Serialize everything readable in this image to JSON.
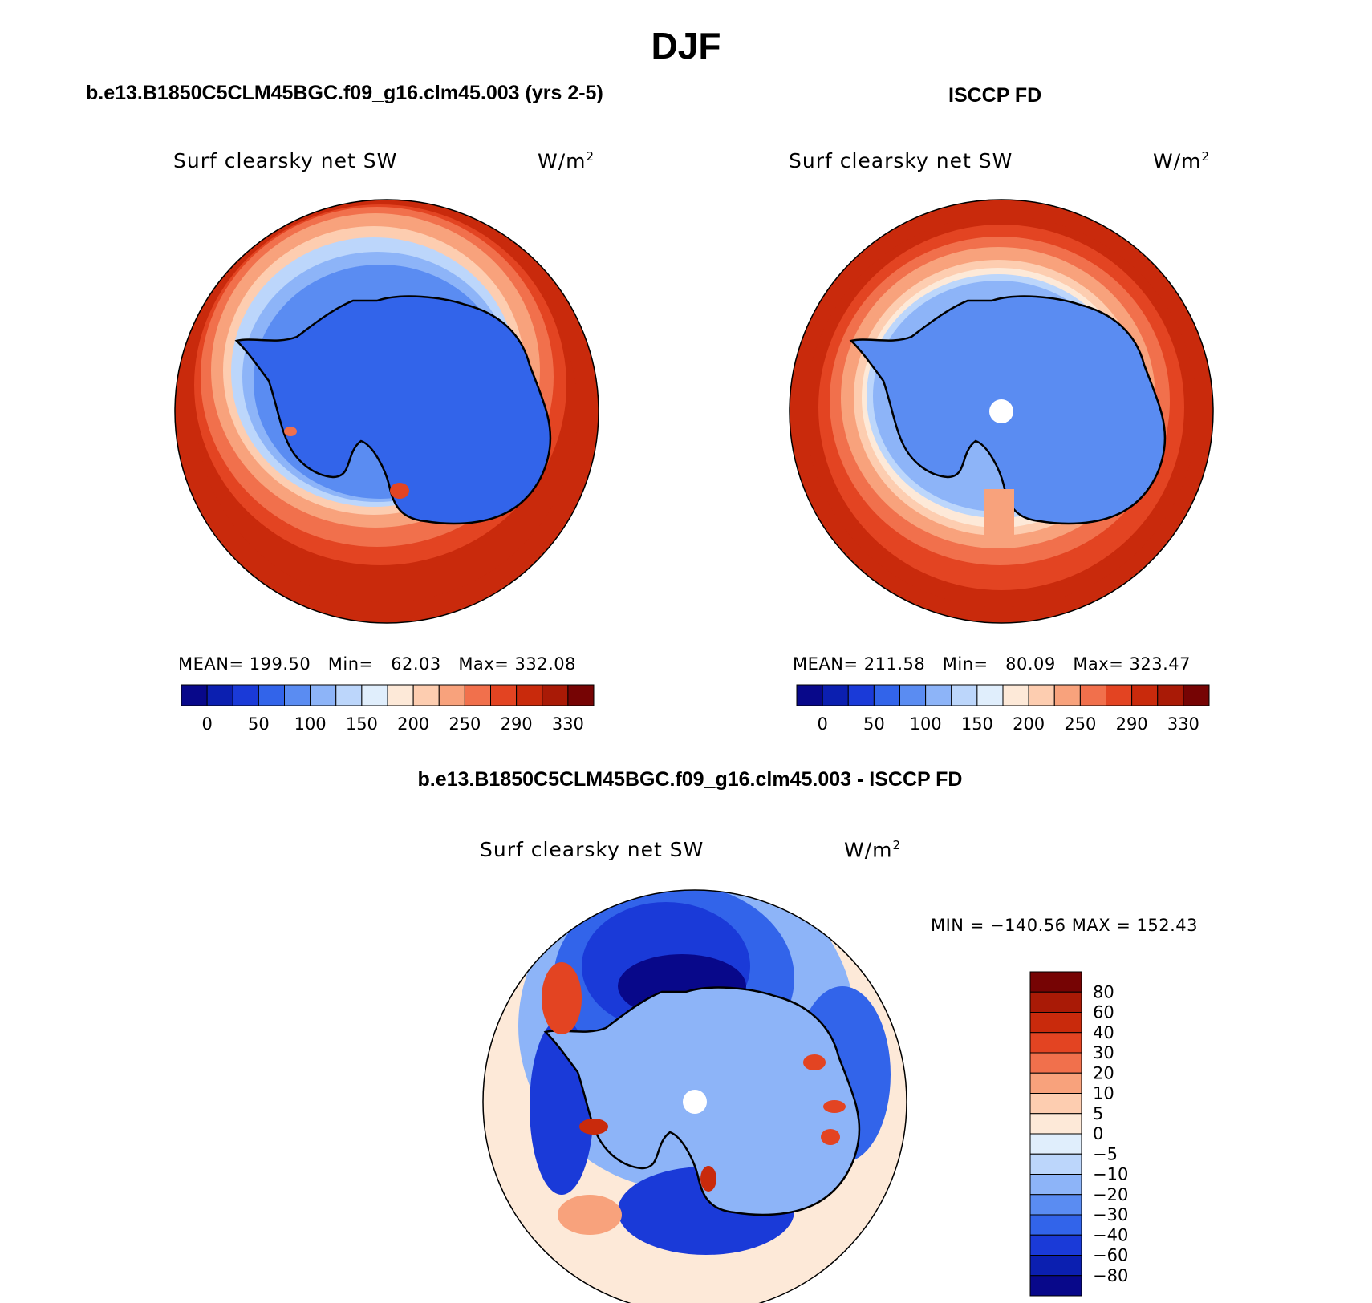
{
  "figure": {
    "season": "DJF"
  },
  "panels": {
    "model": {
      "title": "b.e13.B1850C5CLM45BGC.f09_g16.clm45.003 (yrs 2-5)",
      "variable": "Surf clearsky net SW",
      "units_base": "W/m",
      "units_exp": "2",
      "stats": {
        "mean_label": "MEAN=",
        "mean": "199.50",
        "min_label": "Min=",
        "min": "62.03",
        "max_label": "Max=",
        "max": "332.08"
      }
    },
    "obs": {
      "title": "ISCCP FD",
      "variable": "Surf clearsky net SW",
      "units_base": "W/m",
      "units_exp": "2",
      "stats": {
        "mean_label": "MEAN=",
        "mean": "211.58",
        "min_label": "Min=",
        "min": "80.09",
        "max_label": "Max=",
        "max": "323.47"
      }
    },
    "diff": {
      "title": "b.e13.B1850C5CLM45BGC.f09_g16.clm45.003 - ISCCP FD",
      "variable": "Surf clearsky net SW",
      "units_base": "W/m",
      "units_exp": "2",
      "minmax": "MIN = −140.56 MAX = 152.43"
    }
  },
  "colorbars": {
    "field": {
      "colors": [
        "#08088a",
        "#0b1fb0",
        "#1a3ad8",
        "#3264ea",
        "#5a8cf2",
        "#8db4f8",
        "#bcd6fb",
        "#e0eefc",
        "#fde9d8",
        "#fdcdb0",
        "#f8a27c",
        "#f1704c",
        "#e34422",
        "#c92a0c",
        "#a91a06",
        "#760404"
      ],
      "labels": [
        "0",
        "50",
        "100",
        "150",
        "200",
        "250",
        "290",
        "330"
      ]
    },
    "diff": {
      "colors": [
        "#760404",
        "#a91a06",
        "#c92a0c",
        "#e34422",
        "#f1704c",
        "#f8a27c",
        "#fdcdb0",
        "#fde9d8",
        "#e0eefc",
        "#bcd6fb",
        "#8db4f8",
        "#5a8cf2",
        "#3264ea",
        "#1a3ad8",
        "#0b1fb0",
        "#08088a"
      ],
      "labels": [
        "80",
        "60",
        "40",
        "30",
        "20",
        "10",
        "5",
        "0",
        "−5",
        "−10",
        "−20",
        "−30",
        "−40",
        "−60",
        "−80"
      ]
    }
  }
}
